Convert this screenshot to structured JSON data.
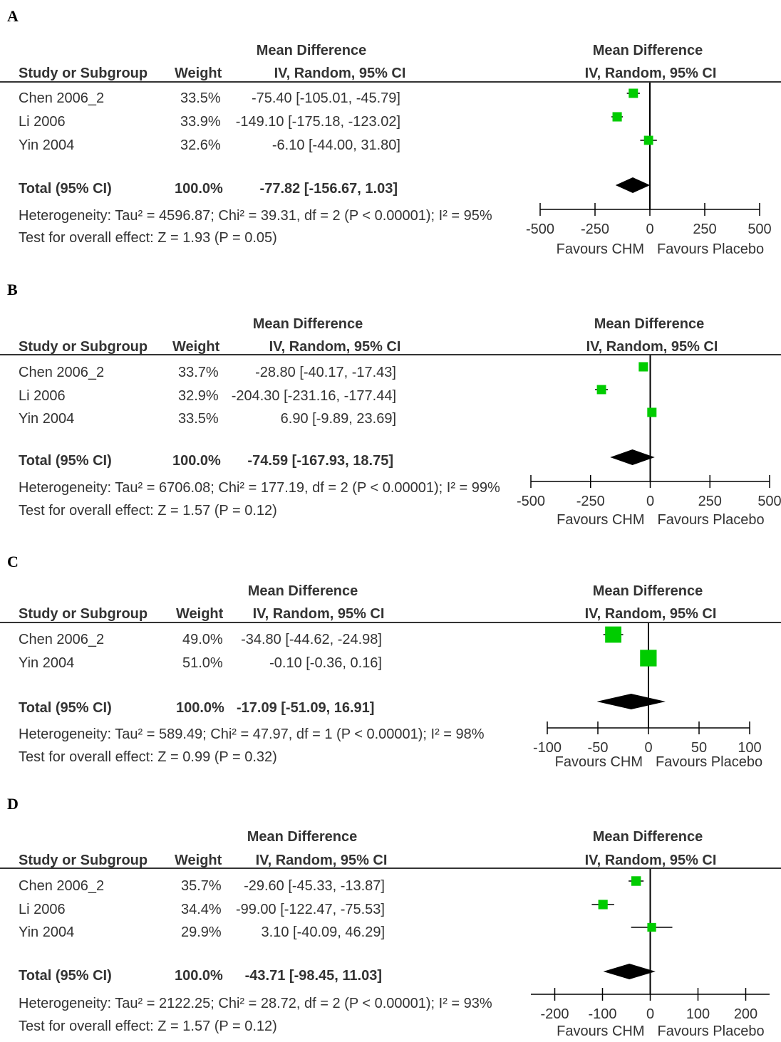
{
  "common": {
    "col_study": "Study or Subgroup",
    "col_weight": "Weight",
    "col_md_title": "Mean Difference",
    "col_md_sub": "IV, Random, 95% CI",
    "plot_title": "Mean Difference",
    "plot_sub": "IV, Random, 95% CI",
    "favours_left": "Favours CHM",
    "favours_right": "Favours Placebo",
    "colors": {
      "square": "#00cc00",
      "diamond": "#000000",
      "text": "#333333"
    }
  },
  "chart_data": [
    {
      "type": "forest",
      "panel": "A",
      "xlim": [
        -500,
        500
      ],
      "ticks": [
        -500,
        -250,
        0,
        250,
        500
      ],
      "studies": [
        {
          "name": "Chen 2006_2",
          "weight": "33.5%",
          "ci_text": "-75.40 [-105.01, -45.79]",
          "md": -75.4,
          "lo": -105.01,
          "hi": -45.79
        },
        {
          "name": "Li 2006",
          "weight": "33.9%",
          "ci_text": "-149.10 [-175.18, -123.02]",
          "md": -149.1,
          "lo": -175.18,
          "hi": -123.02
        },
        {
          "name": "Yin 2004",
          "weight": "32.6%",
          "ci_text": "-6.10 [-44.00, 31.80]",
          "md": -6.1,
          "lo": -44.0,
          "hi": 31.8
        }
      ],
      "total": {
        "label": "Total (95% CI)",
        "weight": "100.0%",
        "ci_text": "-77.82 [-156.67, 1.03]",
        "md": -77.82,
        "lo": -156.67,
        "hi": 1.03
      },
      "heterogeneity": "Heterogeneity: Tau² = 4596.87; Chi² = 39.31, df = 2 (P < 0.00001); I² = 95%",
      "overall_effect": "Test for overall effect: Z = 1.93 (P = 0.05)"
    },
    {
      "type": "forest",
      "panel": "B",
      "xlim": [
        -500,
        500
      ],
      "ticks": [
        -500,
        -250,
        0,
        250,
        500
      ],
      "studies": [
        {
          "name": "Chen 2006_2",
          "weight": "33.7%",
          "ci_text": "-28.80 [-40.17, -17.43]",
          "md": -28.8,
          "lo": -40.17,
          "hi": -17.43
        },
        {
          "name": "Li 2006",
          "weight": "32.9%",
          "ci_text": "-204.30 [-231.16, -177.44]",
          "md": -204.3,
          "lo": -231.16,
          "hi": -177.44
        },
        {
          "name": "Yin 2004",
          "weight": "33.5%",
          "ci_text": "6.90 [-9.89, 23.69]",
          "md": 6.9,
          "lo": -9.89,
          "hi": 23.69
        }
      ],
      "total": {
        "label": "Total (95% CI)",
        "weight": "100.0%",
        "ci_text": "-74.59 [-167.93, 18.75]",
        "md": -74.59,
        "lo": -167.93,
        "hi": 18.75
      },
      "heterogeneity": "Heterogeneity: Tau² = 6706.08; Chi² = 177.19, df = 2 (P < 0.00001); I² = 99%",
      "overall_effect": "Test for overall effect: Z = 1.57 (P = 0.12)"
    },
    {
      "type": "forest",
      "panel": "C",
      "xlim": [
        -100,
        100
      ],
      "ticks": [
        -100,
        -50,
        0,
        50,
        100
      ],
      "studies": [
        {
          "name": "Chen 2006_2",
          "weight": "49.0%",
          "ci_text": "-34.80 [-44.62, -24.98]",
          "md": -34.8,
          "lo": -44.62,
          "hi": -24.98
        },
        {
          "name": "Yin 2004",
          "weight": "51.0%",
          "ci_text": "-0.10 [-0.36, 0.16]",
          "md": -0.1,
          "lo": -0.36,
          "hi": 0.16
        }
      ],
      "total": {
        "label": "Total (95% CI)",
        "weight": "100.0%",
        "ci_text": "-17.09 [-51.09, 16.91]",
        "md": -17.09,
        "lo": -51.09,
        "hi": 16.91
      },
      "heterogeneity": "Heterogeneity: Tau² = 589.49; Chi² = 47.97, df = 1 (P < 0.00001); I² = 98%",
      "overall_effect": "Test for overall effect: Z = 0.99 (P = 0.32)"
    },
    {
      "type": "forest",
      "panel": "D",
      "xlim": [
        -250,
        250
      ],
      "ticks": [
        -200,
        -100,
        0,
        100,
        200
      ],
      "studies": [
        {
          "name": "Chen 2006_2",
          "weight": "35.7%",
          "ci_text": "-29.60 [-45.33, -13.87]",
          "md": -29.6,
          "lo": -45.33,
          "hi": -13.87
        },
        {
          "name": "Li 2006",
          "weight": "34.4%",
          "ci_text": "-99.00 [-122.47, -75.53]",
          "md": -99.0,
          "lo": -122.47,
          "hi": -75.53
        },
        {
          "name": "Yin 2004",
          "weight": "29.9%",
          "ci_text": "3.10 [-40.09, 46.29]",
          "md": 3.1,
          "lo": -40.09,
          "hi": 46.29
        }
      ],
      "total": {
        "label": "Total (95% CI)",
        "weight": "100.0%",
        "ci_text": "-43.71 [-98.45, 11.03]",
        "md": -43.71,
        "lo": -98.45,
        "hi": 11.03
      },
      "heterogeneity": "Heterogeneity: Tau² = 2122.25; Chi² = 28.72, df = 2 (P < 0.00001); I² = 93%",
      "overall_effect": "Test for overall effect: Z = 1.57 (P = 0.12)"
    }
  ]
}
